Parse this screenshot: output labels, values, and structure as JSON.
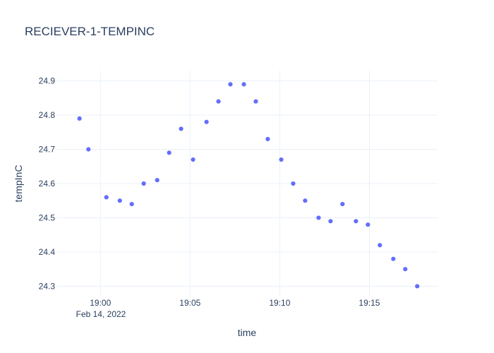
{
  "chart_data": {
    "type": "scatter",
    "title": "RECIEVER-1-TEMPINC",
    "xlabel": "time",
    "ylabel": "tempInC",
    "x_tick_labels": [
      "19:00",
      "19:05",
      "19:10",
      "19:15"
    ],
    "x_date_label": "Feb 14, 2022",
    "y_tick_labels": [
      "24.3",
      "24.4",
      "24.5",
      "24.6",
      "24.7",
      "24.8",
      "24.9"
    ],
    "ylim": [
      24.27,
      24.93
    ],
    "xlim": [
      "2022-02-14 18:57:33",
      "2022-02-14 19:18:48"
    ],
    "grid": true,
    "marker_color": "#636efa",
    "series": [
      {
        "x": [
          "2022-02-14 18:58:50",
          "2022-02-14 18:59:20",
          "2022-02-14 19:00:20",
          "2022-02-14 19:01:05",
          "2022-02-14 19:01:45",
          "2022-02-14 19:02:25",
          "2022-02-14 19:03:10",
          "2022-02-14 19:03:50",
          "2022-02-14 19:04:30",
          "2022-02-14 19:05:10",
          "2022-02-14 19:05:55",
          "2022-02-14 19:06:35",
          "2022-02-14 19:07:15",
          "2022-02-14 19:08:00",
          "2022-02-14 19:08:40",
          "2022-02-14 19:09:20",
          "2022-02-14 19:10:05",
          "2022-02-14 19:10:45",
          "2022-02-14 19:11:25",
          "2022-02-14 19:12:10",
          "2022-02-14 19:12:50",
          "2022-02-14 19:13:30",
          "2022-02-14 19:14:15",
          "2022-02-14 19:14:55",
          "2022-02-14 19:15:35",
          "2022-02-14 19:16:20",
          "2022-02-14 19:17:00",
          "2022-02-14 19:17:40"
        ],
        "y": [
          24.79,
          24.7,
          24.56,
          24.55,
          24.54,
          24.6,
          24.61,
          24.69,
          24.76,
          24.67,
          24.78,
          24.84,
          24.89,
          24.89,
          24.84,
          24.73,
          24.67,
          24.6,
          24.55,
          24.5,
          24.49,
          24.54,
          24.49,
          24.48,
          24.42,
          24.38,
          24.35,
          24.3
        ]
      }
    ]
  }
}
